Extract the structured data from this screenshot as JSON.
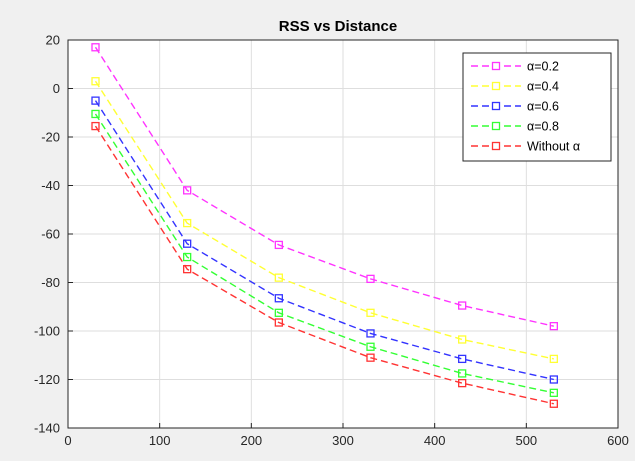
{
  "chart_data": {
    "type": "line",
    "title": "RSS vs Distance",
    "xlabel": "",
    "ylabel": "",
    "xlim": [
      0,
      600
    ],
    "ylim": [
      -140,
      20
    ],
    "xticks": [
      0,
      100,
      200,
      300,
      400,
      500,
      600
    ],
    "yticks": [
      -140,
      -120,
      -100,
      -80,
      -60,
      -40,
      -20,
      0,
      20
    ],
    "grid": true,
    "legend_position": "top-right",
    "x": [
      30,
      130,
      230,
      330,
      430,
      530
    ],
    "series": [
      {
        "name": "α=0.2",
        "color": "#ff33ff",
        "values": [
          17,
          -42,
          -64.5,
          -78.5,
          -89.5,
          -98
        ]
      },
      {
        "name": "α=0.4",
        "color": "#ffff33",
        "values": [
          3,
          -55.5,
          -78,
          -92.5,
          -103.5,
          -111.5
        ]
      },
      {
        "name": "α=0.6",
        "color": "#3333ff",
        "values": [
          -5,
          -64,
          -86.5,
          -101,
          -111.5,
          -120
        ]
      },
      {
        "name": "α=0.8",
        "color": "#33ff33",
        "values": [
          -10.5,
          -69.5,
          -92.5,
          -106.5,
          -117.5,
          -125.5
        ]
      },
      {
        "name": "Without α",
        "color": "#ff3333",
        "values": [
          -15.5,
          -74.5,
          -96.5,
          -111,
          -121.5,
          -130
        ]
      }
    ]
  }
}
